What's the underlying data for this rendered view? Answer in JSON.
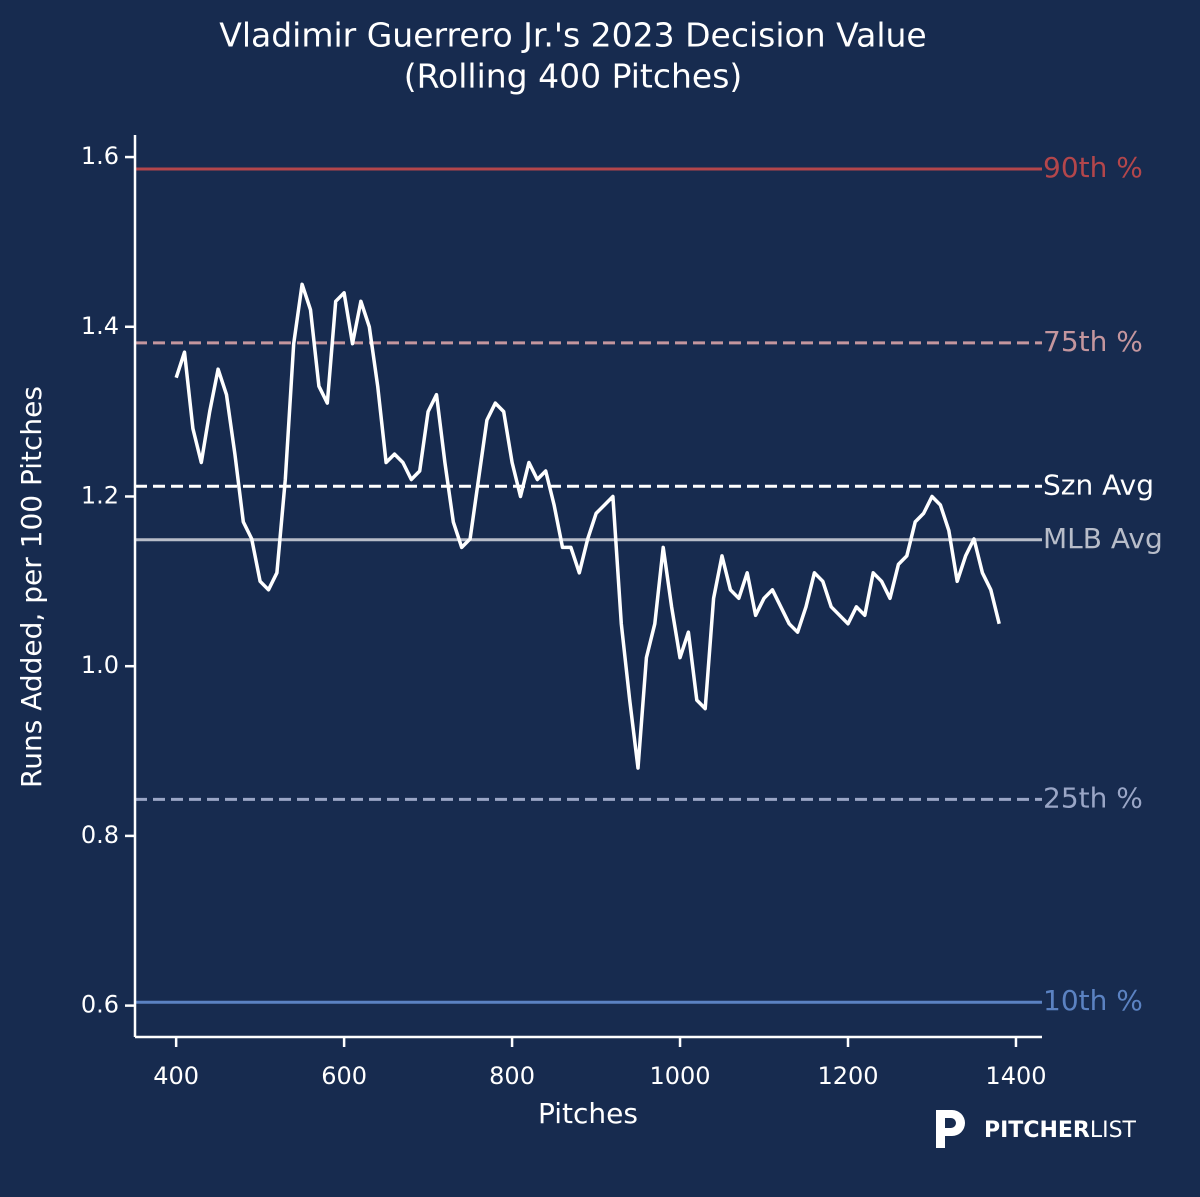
{
  "chart_data": {
    "type": "line",
    "title": "Vladimir Guerrero Jr.'s 2023 Decision Value",
    "subtitle": "(Rolling 400 Pitches)",
    "x_label": "Pitches",
    "y_label": "Runs Added, per 100 Pitches",
    "color": "#ffffff",
    "x": [
      400,
      410,
      420,
      430,
      440,
      450,
      460,
      470,
      480,
      490,
      500,
      510,
      520,
      530,
      540,
      550,
      560,
      570,
      580,
      590,
      600,
      610,
      620,
      630,
      640,
      650,
      660,
      670,
      680,
      690,
      700,
      710,
      720,
      730,
      740,
      750,
      760,
      770,
      780,
      790,
      800,
      810,
      820,
      830,
      840,
      850,
      860,
      870,
      880,
      890,
      900,
      910,
      920,
      930,
      940,
      950,
      960,
      970,
      980,
      990,
      1000,
      1010,
      1020,
      1030,
      1040,
      1050,
      1060,
      1070,
      1080,
      1090,
      1100,
      1110,
      1120,
      1130,
      1140,
      1150,
      1160,
      1170,
      1180,
      1190,
      1200,
      1210,
      1220,
      1230,
      1240,
      1250,
      1260,
      1270,
      1280,
      1290,
      1300,
      1310,
      1320,
      1330,
      1340,
      1350,
      1360,
      1370,
      1380
    ],
    "values": [
      1.34,
      1.37,
      1.28,
      1.24,
      1.3,
      1.35,
      1.32,
      1.25,
      1.17,
      1.15,
      1.1,
      1.09,
      1.11,
      1.22,
      1.38,
      1.45,
      1.42,
      1.33,
      1.31,
      1.43,
      1.44,
      1.38,
      1.43,
      1.4,
      1.33,
      1.24,
      1.25,
      1.24,
      1.22,
      1.23,
      1.3,
      1.32,
      1.24,
      1.17,
      1.14,
      1.15,
      1.22,
      1.29,
      1.31,
      1.3,
      1.24,
      1.2,
      1.24,
      1.22,
      1.23,
      1.19,
      1.14,
      1.14,
      1.11,
      1.15,
      1.18,
      1.19,
      1.2,
      1.05,
      0.96,
      0.88,
      1.01,
      1.05,
      1.14,
      1.07,
      1.01,
      1.04,
      0.96,
      0.95,
      1.08,
      1.13,
      1.09,
      1.08,
      1.11,
      1.06,
      1.08,
      1.09,
      1.07,
      1.05,
      1.04,
      1.07,
      1.11,
      1.1,
      1.07,
      1.06,
      1.05,
      1.07,
      1.06,
      1.11,
      1.1,
      1.08,
      1.12,
      1.13,
      1.17,
      1.18,
      1.2,
      1.19,
      1.16,
      1.1,
      1.13,
      1.15,
      1.11,
      1.09,
      1.05
    ],
    "xlim": [
      351,
      1431
    ],
    "ylim": [
      0.563,
      1.626
    ],
    "xticks": [
      400,
      600,
      800,
      1000,
      1200,
      1400
    ],
    "yticks": [
      0.6,
      0.8,
      {
        "value": 1,
        "label": "1.0"
      },
      1.2,
      1.4,
      1.6
    ],
    "grid": false,
    "reference_lines": [
      {
        "label": "90th %",
        "value": 1.586,
        "color": "#b3464b",
        "dashed": false
      },
      {
        "label": "75th %",
        "value": 1.381,
        "color": "#c4969e",
        "dashed": true
      },
      {
        "label": "Szn Avg",
        "value": 1.212,
        "color": "#ffffff",
        "dashed": true
      },
      {
        "label": "MLB Avg",
        "value": 1.149,
        "color": "#b8bdc9",
        "dashed": false
      },
      {
        "label": "25th %",
        "value": 0.843,
        "color": "#9aa6c6",
        "dashed": true
      },
      {
        "label": "10th %",
        "value": 0.604,
        "color": "#5b82c2",
        "dashed": false
      }
    ],
    "logo": {
      "bold": "PITCHER",
      "light": "LIST"
    }
  }
}
